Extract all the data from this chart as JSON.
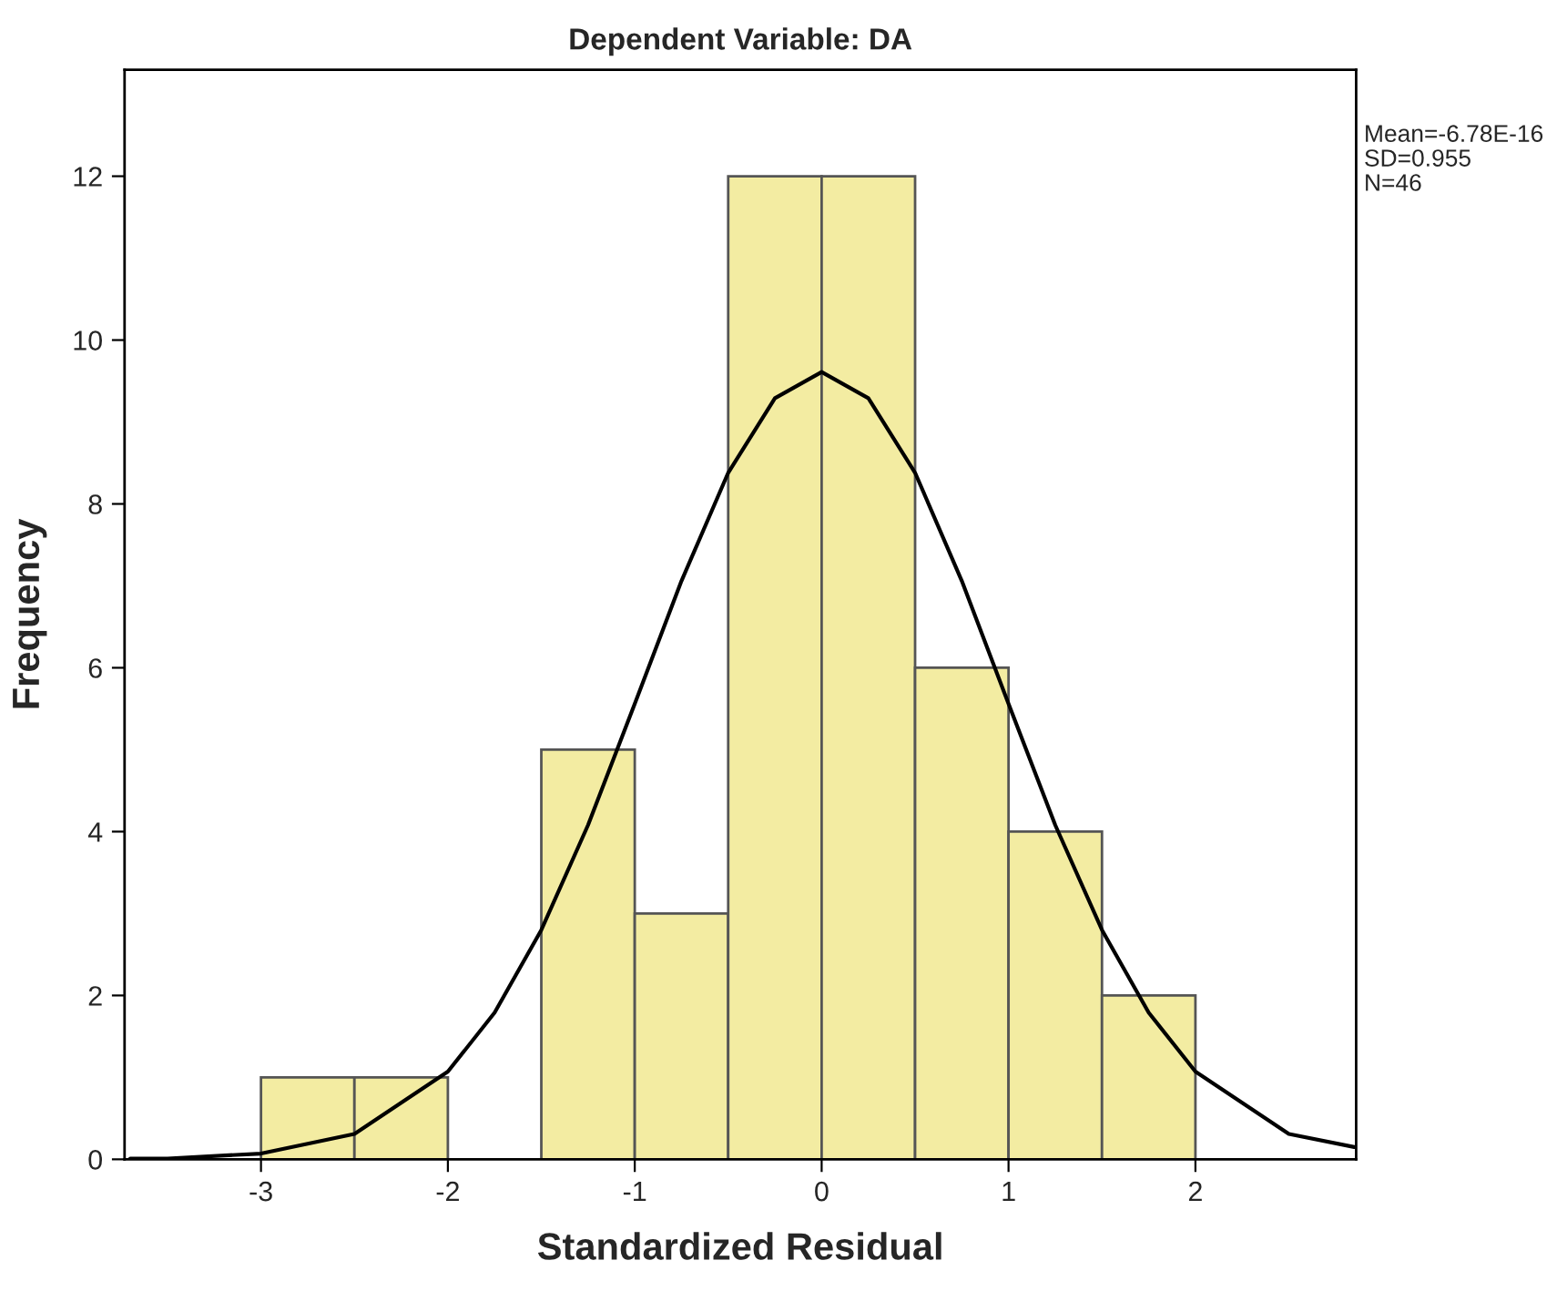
{
  "chart_data": {
    "type": "histogram",
    "title": "Dependent Variable: DA",
    "xlabel": "Standardized Residual",
    "ylabel": "Frequency",
    "bins": [
      -3,
      -2.5,
      -2,
      -1.5,
      -1,
      -0.5,
      0,
      0.5,
      1,
      1.5,
      2
    ],
    "values": [
      1,
      1,
      0,
      5,
      3,
      12,
      12,
      6,
      4,
      2
    ],
    "color": "#f3eca2",
    "series": [
      {
        "type": "line",
        "color": "#000000",
        "x": [
          -3.7,
          -3.5,
          -3,
          -2.5,
          -2,
          -1.75,
          -1.5,
          -1.25,
          -1,
          -0.75,
          -0.5,
          -0.25,
          0,
          0.25,
          0.5,
          0.75,
          1,
          1.25,
          1.5,
          1.75,
          2,
          2.5,
          2.85
        ],
        "values": [
          0.01,
          0.01,
          0.07,
          0.31,
          1.07,
          1.79,
          2.8,
          4.08,
          5.56,
          7.06,
          8.38,
          9.29,
          9.61,
          9.29,
          8.38,
          7.06,
          5.56,
          4.08,
          2.8,
          1.79,
          1.07,
          0.31,
          0.15
        ]
      }
    ],
    "xlim": [
      -3.73,
      2.86
    ],
    "ylim": [
      0,
      13.3
    ],
    "xticks": [
      -3,
      -2,
      -1,
      0,
      1,
      2
    ],
    "yticks": [
      0,
      2,
      4,
      6,
      8,
      10,
      12
    ],
    "grid": false,
    "annotations": [
      "Mean=-6.78E-16",
      "SD=0.955",
      "N=46"
    ]
  }
}
